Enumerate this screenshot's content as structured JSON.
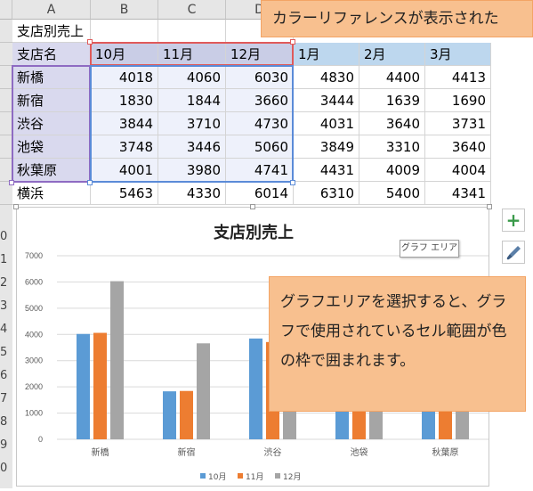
{
  "columns": [
    "A",
    "B",
    "C",
    "D"
  ],
  "sheet": {
    "title": "支店別売上",
    "header": [
      "支店名",
      "10月",
      "11月",
      "12月",
      "1月",
      "2月",
      "3月"
    ],
    "rows": [
      {
        "name": "新橋",
        "v": [
          "4018",
          "4060",
          "6030",
          "4830",
          "4400",
          "4413"
        ]
      },
      {
        "name": "新宿",
        "v": [
          "1830",
          "1844",
          "3660",
          "3444",
          "1639",
          "1690"
        ]
      },
      {
        "name": "渋谷",
        "v": [
          "3844",
          "3710",
          "4730",
          "4031",
          "3640",
          "3731"
        ]
      },
      {
        "name": "池袋",
        "v": [
          "3748",
          "3446",
          "5060",
          "3849",
          "3310",
          "3640"
        ]
      },
      {
        "name": "秋葉原",
        "v": [
          "4001",
          "3980",
          "4741",
          "4431",
          "4009",
          "4004"
        ]
      },
      {
        "name": "横浜",
        "v": [
          "5463",
          "4330",
          "6014",
          "6310",
          "5400",
          "4341"
        ]
      }
    ]
  },
  "row_numbers": [
    "0",
    "1",
    "2",
    "3",
    "4",
    "5",
    "6",
    "7",
    "8",
    "9",
    "0"
  ],
  "callout_top": "カラーリファレンスが表示された",
  "callout_main": "グラフエリアを選択すると、グラフで使用されているセル範囲が色の枠で囲まれます。",
  "tooltip": "グラフ エリア",
  "side_buttons": {
    "add": "+",
    "style": "brush-icon"
  },
  "colors": {
    "s1": "#5b9bd5",
    "s2": "#ed7d31",
    "s3": "#a5a5a5",
    "callout": "#f8c08f",
    "header": "#bdd7ee"
  },
  "chart_data": {
    "type": "bar",
    "title": "支店別売上",
    "categories": [
      "新橋",
      "新宿",
      "渋谷",
      "池袋",
      "秋葉原"
    ],
    "series": [
      {
        "name": "10月",
        "values": [
          4018,
          1830,
          3844,
          3748,
          4001
        ]
      },
      {
        "name": "11月",
        "values": [
          4060,
          1844,
          3710,
          3446,
          3980
        ]
      },
      {
        "name": "12月",
        "values": [
          6030,
          3660,
          4730,
          5060,
          4741
        ]
      }
    ],
    "ylim": [
      0,
      7000
    ],
    "yticks": [
      "0",
      "1000",
      "2000",
      "3000",
      "4000",
      "5000",
      "6000",
      "7000"
    ],
    "grid": true,
    "legend": "bottom"
  }
}
